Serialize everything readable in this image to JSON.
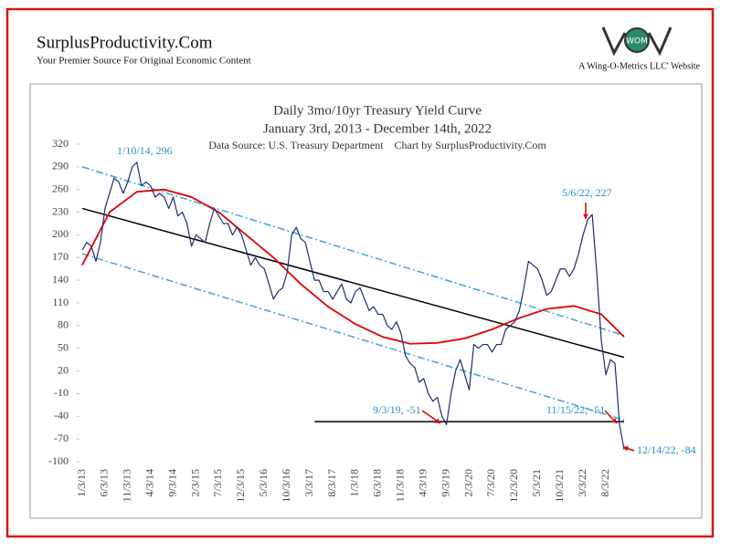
{
  "header": {
    "site": "SurplusProductivity.Com",
    "tagline": "Your Premier Source For Original Economic Content",
    "logo": "WOM",
    "credit": "A Wing-O-Metrics LLC' Website"
  },
  "chart_data": {
    "type": "line",
    "title": "Daily 3mo/10yr Treasury Yield Curve",
    "subtitle": "January 3rd, 2013 -  December 14th, 2022",
    "source": "Data Source: U.S. Treasury Department    Chart by SurplusProductivity.Com",
    "categories": [
      "1/3/13",
      null,
      null,
      null,
      null,
      "6/3/13",
      null,
      null,
      null,
      null,
      "11/3/13",
      null,
      null,
      null,
      null,
      "4/3/14",
      null,
      null,
      null,
      null,
      "9/3/14",
      null,
      null,
      null,
      null,
      "2/3/15",
      null,
      null,
      null,
      null,
      "7/3/15",
      null,
      null,
      null,
      null,
      "12/3/15",
      null,
      null,
      null,
      null,
      "5/3/16",
      null,
      null,
      null,
      null,
      "10/3/16",
      null,
      null,
      null,
      null,
      "3/3/17",
      null,
      null,
      null,
      null,
      "8/3/17",
      null,
      null,
      null,
      null,
      "1/3/18",
      null,
      null,
      null,
      null,
      "6/3/18",
      null,
      null,
      null,
      null,
      "11/3/18",
      null,
      null,
      null,
      null,
      "4/3/19",
      null,
      null,
      null,
      null,
      "9/3/19",
      null,
      null,
      null,
      null,
      "2/3/20",
      null,
      null,
      null,
      null,
      "7/3/20",
      null,
      null,
      null,
      null,
      "12/3/20",
      null,
      null,
      null,
      null,
      "5/3/21",
      null,
      null,
      null,
      null,
      "10/3/21",
      null,
      null,
      null,
      null,
      "3/3/22",
      null,
      null,
      null,
      null,
      "8/3/22",
      null,
      null,
      null,
      null
    ],
    "series": [
      {
        "color": "#1f2d6e",
        "values": [
          180,
          190,
          185,
          165,
          190,
          235,
          255,
          275,
          270,
          255,
          270,
          290,
          296,
          265,
          270,
          265,
          250,
          255,
          250,
          235,
          250,
          225,
          230,
          215,
          185,
          200,
          195,
          190,
          215,
          235,
          225,
          215,
          215,
          200,
          210,
          200,
          180,
          160,
          170,
          160,
          155,
          135,
          115,
          125,
          130,
          150,
          200,
          210,
          195,
          190,
          165,
          140,
          140,
          125,
          125,
          115,
          125,
          135,
          115,
          110,
          125,
          130,
          115,
          100,
          105,
          95,
          95,
          80,
          75,
          85,
          70,
          40,
          30,
          25,
          5,
          10,
          -10,
          -20,
          -15,
          -40,
          -51,
          -10,
          20,
          35,
          15,
          -5,
          55,
          50,
          55,
          55,
          45,
          55,
          55,
          75,
          80,
          85,
          100,
          130,
          165,
          160,
          155,
          140,
          120,
          125,
          140,
          155,
          155,
          145,
          155,
          175,
          200,
          220,
          227,
          150,
          60,
          15,
          35,
          30,
          -51,
          -84
        ]
      }
    ],
    "ylim": [
      -100,
      320
    ],
    "yticks": [
      -100,
      -70,
      -40,
      -10,
      20,
      50,
      80,
      110,
      140,
      170,
      200,
      230,
      260,
      290,
      320
    ],
    "overlays": [
      {
        "color": "#000000",
        "style": "solid",
        "x": [
          0,
          119
        ],
        "values": [
          235,
          38
        ]
      },
      {
        "color": "#3aa6d8",
        "style": "dashdot",
        "x": [
          0,
          119
        ],
        "values": [
          290,
          67
        ]
      },
      {
        "color": "#3aa6d8",
        "style": "dashdot",
        "x": [
          0,
          119
        ],
        "values": [
          175,
          -45
        ]
      },
      {
        "color": "#000000",
        "style": "solid",
        "x": [
          51,
          119
        ],
        "values": [
          -47,
          -47
        ]
      },
      {
        "color": "#e00000",
        "style": "solid",
        "x": [
          0,
          6,
          12,
          18,
          24,
          30,
          36,
          42,
          48,
          54,
          60,
          66,
          72,
          78,
          84,
          90,
          96,
          102,
          108,
          114,
          119
        ],
        "values": [
          160,
          230,
          257,
          260,
          250,
          230,
          200,
          170,
          135,
          105,
          82,
          65,
          56,
          57,
          63,
          75,
          90,
          102,
          106,
          95,
          65
        ]
      }
    ],
    "annotations": [
      {
        "text": "1/10/14, 296"
      },
      {
        "text": "5/6/22, 227"
      },
      {
        "text": "9/3/19, -51"
      },
      {
        "text": "11/15/22, -51"
      },
      {
        "text": "12/14/22, -84"
      }
    ]
  }
}
